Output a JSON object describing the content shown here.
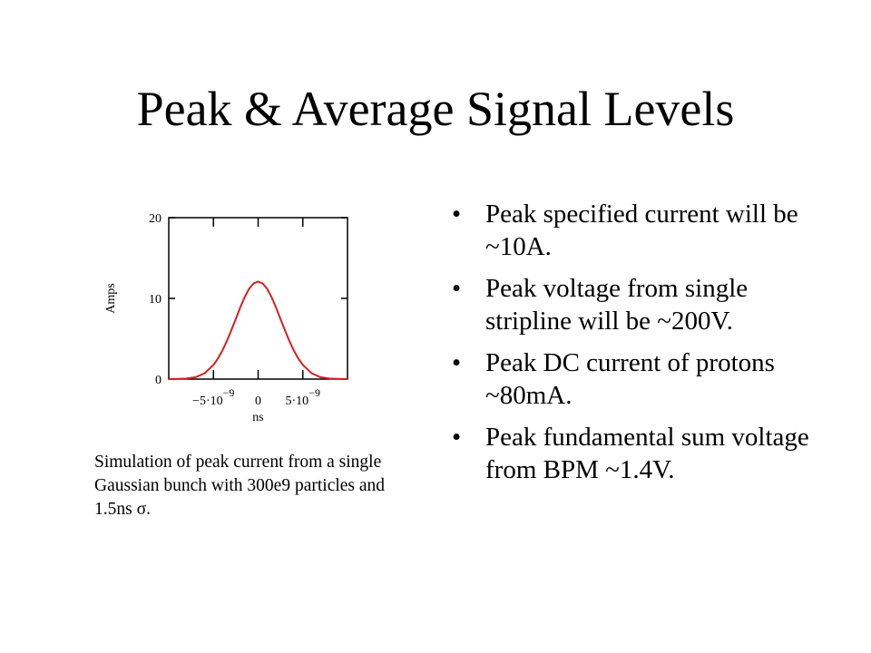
{
  "slide": {
    "title": "Peak & Average Signal Levels"
  },
  "bullets": [
    {
      "text": "Peak specified current will be ~10A."
    },
    {
      "text": "Peak voltage from single stripline will be ~200V."
    },
    {
      "text": "Peak DC current of protons ~80mA."
    },
    {
      "text": "Peak fundamental  sum voltage from BPM ~1.4V."
    }
  ],
  "bullet_symbol": "•",
  "caption": "Simulation of peak current from a single Gaussian bunch with 300e9 particles and 1.5ns σ.",
  "chart_data": {
    "type": "line",
    "title": "",
    "xlabel": "ns",
    "ylabel": "Amps",
    "xlim": [
      -1e-08,
      1e-08
    ],
    "ylim": [
      0,
      20
    ],
    "x_ticks": [
      {
        "value": -5e-09,
        "base": "−5·10",
        "exp": "−9"
      },
      {
        "value": 0,
        "base": "0",
        "exp": ""
      },
      {
        "value": 5e-09,
        "base": "5·10",
        "exp": "−9"
      }
    ],
    "y_ticks": [
      {
        "value": 0,
        "label": "0"
      },
      {
        "value": 10,
        "label": "10"
      },
      {
        "value": 20,
        "label": "20"
      }
    ],
    "grid": false,
    "series": [
      {
        "color": "#d42020",
        "x": [
          -1e-08,
          -9e-09,
          -8e-09,
          -7e-09,
          -6e-09,
          -5e-09,
          -4.5e-09,
          -4e-09,
          -3.5e-09,
          -3e-09,
          -2.5e-09,
          -2e-09,
          -1.5e-09,
          -1e-09,
          -5e-10,
          0,
          5e-10,
          1e-09,
          1.5e-09,
          2e-09,
          2.5e-09,
          3e-09,
          3.5e-09,
          4e-09,
          4.5e-09,
          5e-09,
          6e-09,
          7e-09,
          8e-09,
          9e-09,
          1e-08
        ],
        "y": [
          0.0,
          0.02,
          0.07,
          0.24,
          0.71,
          1.76,
          2.55,
          3.53,
          4.71,
          6.04,
          7.46,
          8.88,
          10.17,
          11.2,
          11.86,
          12.09,
          11.86,
          11.2,
          10.17,
          8.88,
          7.46,
          6.04,
          4.71,
          3.53,
          2.55,
          1.76,
          0.71,
          0.24,
          0.07,
          0.02,
          0.0
        ]
      }
    ]
  }
}
